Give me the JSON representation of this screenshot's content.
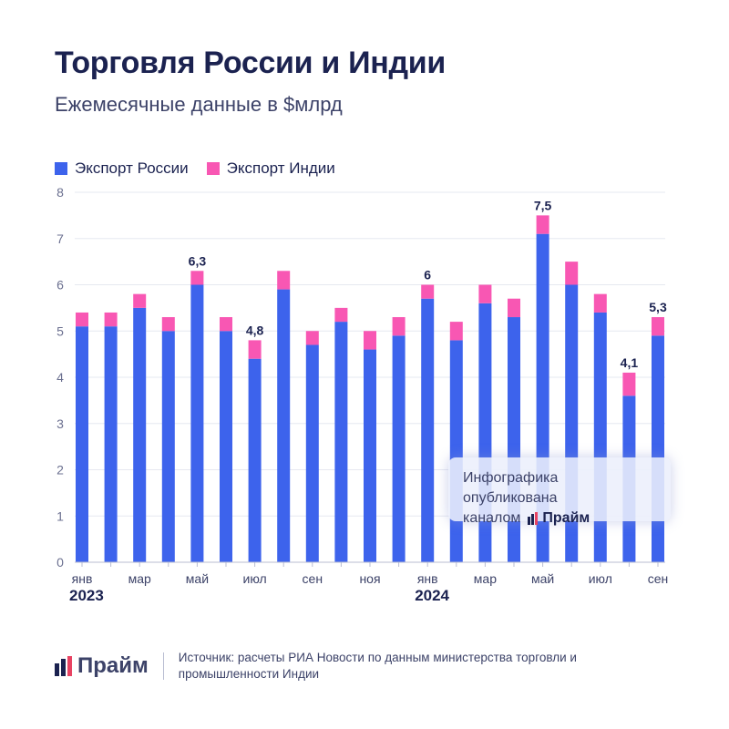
{
  "header": {
    "title": "Торговля России и Индии",
    "subtitle": "Ежемесячные данные в $млрд"
  },
  "colors": {
    "russia": "#3d63ec",
    "india": "#f857b3",
    "text": "#1b2250",
    "grid": "#e6e8f0",
    "axis": "#b9bdd2"
  },
  "chart_data": {
    "type": "bar",
    "stacked": true,
    "title": "Торговля России и Индии",
    "subtitle": "Ежемесячные данные в $млрд",
    "ylim": [
      0,
      8
    ],
    "yticks": [
      0,
      1,
      2,
      3,
      4,
      5,
      6,
      7,
      8
    ],
    "grid": true,
    "legend_position": "top-left",
    "x_tick_labels": [
      "янв",
      "",
      "мар",
      "",
      "май",
      "",
      "июл",
      "",
      "сен",
      "",
      "ноя",
      "",
      "янв",
      "",
      "мар",
      "",
      "май",
      "",
      "июл",
      "",
      "сен"
    ],
    "year_labels": [
      {
        "index": 0,
        "label": "2023"
      },
      {
        "index": 12,
        "label": "2024"
      }
    ],
    "categories": [
      "2023-01",
      "2023-02",
      "2023-03",
      "2023-04",
      "2023-05",
      "2023-06",
      "2023-07",
      "2023-08",
      "2023-09",
      "2023-10",
      "2023-11",
      "2023-12",
      "2024-01",
      "2024-02",
      "2024-03",
      "2024-04",
      "2024-05",
      "2024-06",
      "2024-07",
      "2024-08",
      "2024-09"
    ],
    "series": [
      {
        "name": "Экспорт России",
        "values": [
          5.1,
          5.1,
          5.5,
          5.0,
          6.0,
          5.0,
          4.4,
          5.9,
          4.7,
          5.2,
          4.6,
          4.9,
          5.7,
          4.8,
          5.6,
          5.3,
          7.1,
          6.0,
          5.4,
          3.6,
          4.9
        ]
      },
      {
        "name": "Экспорт Индии",
        "values": [
          0.3,
          0.3,
          0.3,
          0.3,
          0.3,
          0.3,
          0.4,
          0.4,
          0.3,
          0.3,
          0.4,
          0.4,
          0.3,
          0.4,
          0.4,
          0.4,
          0.4,
          0.5,
          0.4,
          0.5,
          0.4
        ]
      }
    ],
    "data_labels": [
      {
        "index": 4,
        "label": "6,3"
      },
      {
        "index": 6,
        "label": "4,8"
      },
      {
        "index": 12,
        "label": "6"
      },
      {
        "index": 16,
        "label": "7,5"
      },
      {
        "index": 19,
        "label": "4,1"
      },
      {
        "index": 20,
        "label": "5,3"
      }
    ]
  },
  "watermark": {
    "line1": "Инфографика опубликована",
    "line2": "каналом",
    "brand": "Прайм"
  },
  "footer": {
    "brand": "Прайм",
    "source": "Источник: расчеты РИА Новости по данным министерства торговли и промышленности Индии"
  }
}
